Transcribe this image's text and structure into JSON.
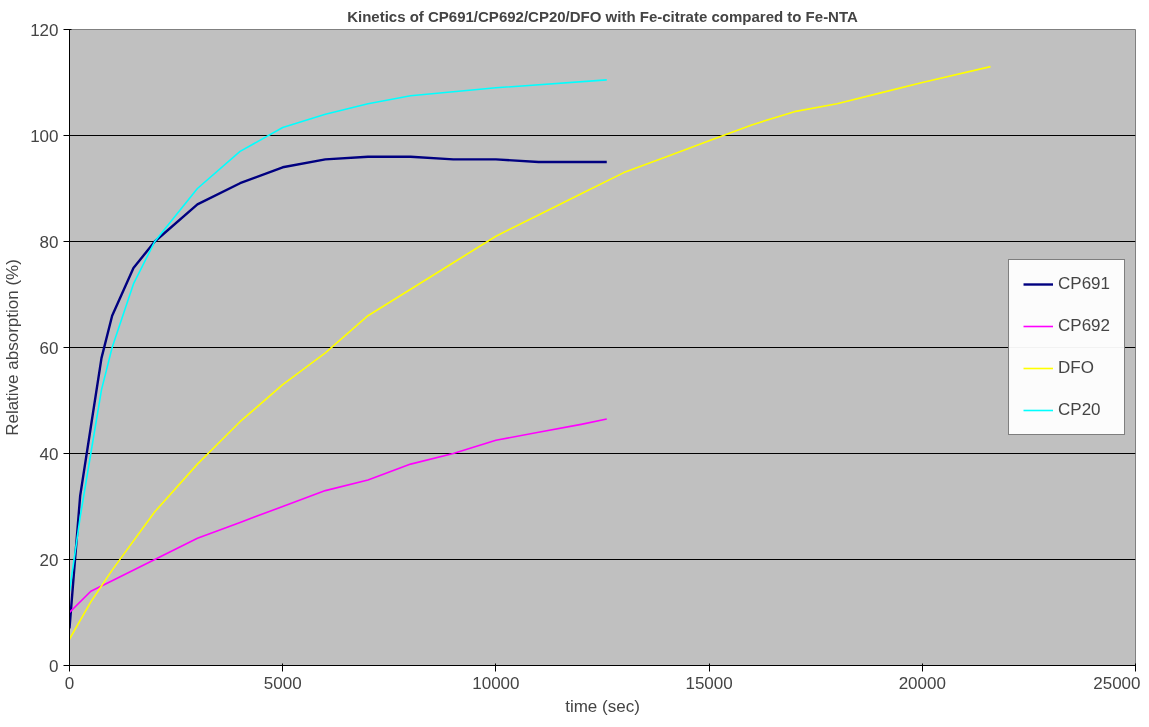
{
  "chart_data": {
    "type": "line",
    "title": "Kinetics of CP691/CP692/CP20/DFO with Fe-citrate compared to Fe-NTA",
    "xlabel": "time (sec)",
    "ylabel": "Relative absorption (%)",
    "xlim": [
      0,
      25000
    ],
    "xticks": [
      0,
      5000,
      10000,
      15000,
      20000,
      25000
    ],
    "ylim": [
      0,
      120
    ],
    "yticks": [
      0,
      20,
      40,
      60,
      80,
      100,
      120
    ],
    "grid": "y",
    "legend": "right",
    "marker": "none",
    "line_style": "solid",
    "series": [
      {
        "name": "CP691",
        "color": "#000080",
        "x": [
          0,
          250,
          500,
          750,
          1000,
          1500,
          2000,
          3000,
          4000,
          5000,
          6000,
          7000,
          8000,
          9000,
          10000,
          11000,
          11500,
          12600
        ],
        "values": [
          7,
          32,
          45,
          58,
          66,
          75,
          80,
          87,
          91,
          94,
          95.5,
          96,
          96,
          95.5,
          95.5,
          95,
          95,
          95
        ]
      },
      {
        "name": "CP692",
        "color": "#ff00ff",
        "x": [
          0,
          500,
          1000,
          2000,
          3000,
          4000,
          5000,
          6000,
          7000,
          8000,
          9000,
          10000,
          11000,
          12000,
          12600
        ],
        "values": [
          10,
          14,
          16,
          20,
          24,
          27,
          30,
          33,
          35,
          38,
          40,
          42.5,
          44,
          45.5,
          46.5
        ]
      },
      {
        "name": "DFO",
        "color": "#ffff00",
        "x": [
          0,
          500,
          1000,
          2000,
          3000,
          4000,
          5000,
          6000,
          7000,
          8000,
          9000,
          10000,
          11000,
          12000,
          13000,
          14000,
          15000,
          16000,
          17000,
          18000,
          19000,
          20000,
          21600
        ],
        "values": [
          5,
          12,
          18,
          29,
          38,
          46,
          53,
          59,
          66,
          71,
          76,
          81,
          85,
          89,
          93,
          96,
          99,
          102,
          104.5,
          106,
          108,
          110,
          113
        ]
      },
      {
        "name": "CP20",
        "color": "#00ffff",
        "x": [
          0,
          250,
          500,
          750,
          1000,
          1500,
          2000,
          3000,
          4000,
          5000,
          6000,
          7000,
          8000,
          10000,
          12600
        ],
        "values": [
          14,
          28,
          40,
          52,
          60,
          72,
          80,
          90,
          97,
          101.5,
          104,
          106,
          107.5,
          109,
          110.5
        ]
      }
    ]
  }
}
